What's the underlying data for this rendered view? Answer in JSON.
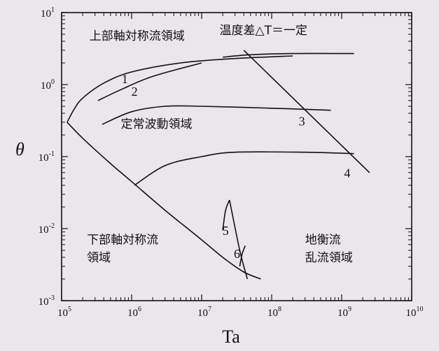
{
  "chart_data": {
    "type": "line",
    "title": "",
    "xlabel": "Ta",
    "ylabel": "θ",
    "x_scale": "log",
    "y_scale": "log",
    "xlim": [
      100000,
      10000000000
    ],
    "ylim": [
      0.001,
      10
    ],
    "x_ticks": [
      {
        "value": 100000,
        "base": "10",
        "exp": "5"
      },
      {
        "value": 1000000,
        "base": "10",
        "exp": "6"
      },
      {
        "value": 10000000,
        "base": "10",
        "exp": "7"
      },
      {
        "value": 100000000,
        "base": "10",
        "exp": "8"
      },
      {
        "value": 1000000000,
        "base": "10",
        "exp": "9"
      },
      {
        "value": 10000000000,
        "base": "10",
        "exp": "10"
      }
    ],
    "y_ticks": [
      {
        "value": 0.001,
        "base": "10",
        "exp": "-3"
      },
      {
        "value": 0.01,
        "base": "10",
        "exp": "-2"
      },
      {
        "value": 0.1,
        "base": "10",
        "exp": "-1"
      },
      {
        "value": 1,
        "base": "10",
        "exp": "0"
      },
      {
        "value": 10,
        "base": "10",
        "exp": "1"
      }
    ],
    "grid": false,
    "regions": [
      {
        "text": "上部軸対称流領域",
        "x": 250000,
        "y": 4.2
      },
      {
        "text": "温度差△T＝一定",
        "x": 18000000,
        "y": 5.0
      },
      {
        "text": "定常波動領域",
        "x": 700000,
        "y": 0.25
      },
      {
        "text": "下部軸対称流",
        "x": 230000,
        "y": 0.0062
      },
      {
        "text": "領域",
        "x": 230000,
        "y": 0.0035
      },
      {
        "text": "地衡流",
        "x": 300000000,
        "y": 0.0062
      },
      {
        "text": "乱流領域",
        "x": 300000000,
        "y": 0.0035
      }
    ],
    "series": [
      {
        "label": "1",
        "label_at": [
          800000,
          1.05
        ],
        "points": [
          [
            330000,
            0.6
          ],
          [
            700000,
            0.85
          ],
          [
            2000000,
            1.3
          ],
          [
            10000000,
            2.0
          ]
        ]
      },
      {
        "label": "2",
        "label_at": [
          1100000,
          0.7
        ],
        "points": [
          [
            380000,
            0.28
          ],
          [
            1000000,
            0.42
          ],
          [
            3000000,
            0.5
          ],
          [
            10000000,
            0.5
          ],
          [
            100000000,
            0.47
          ],
          [
            700000000,
            0.44
          ]
        ]
      },
      {
        "label": "3",
        "label_at": [
          270000000,
          0.27
        ],
        "points": [
          [
            20000000,
            2.4
          ],
          [
            50000000,
            2.6
          ],
          [
            200000000,
            2.7
          ],
          [
            1500000000,
            2.7
          ]
        ]
      },
      {
        "label": "4",
        "label_at": [
          1200000000,
          0.052
        ],
        "points": [
          [
            1100000,
            0.04
          ],
          [
            3000000,
            0.075
          ],
          [
            10000000,
            0.1
          ],
          [
            30000000,
            0.115
          ],
          [
            300000000,
            0.115
          ],
          [
            1500000000,
            0.11
          ]
        ]
      },
      {
        "label": "5",
        "label_at": [
          22000000,
          0.0082
        ],
        "points": [
          [
            20000000,
            0.0095
          ],
          [
            22000000,
            0.018
          ],
          [
            25000000,
            0.025
          ]
        ]
      },
      {
        "label": "6",
        "label_at": [
          32000000,
          0.0039
        ],
        "points": [
          [
            35000000,
            0.003
          ],
          [
            38000000,
            0.0045
          ],
          [
            42000000,
            0.0058
          ]
        ]
      }
    ],
    "boundaries": [
      {
        "name": "left-envelope",
        "points": [
          [
            120000,
            0.3
          ],
          [
            150000,
            0.45
          ],
          [
            200000,
            0.65
          ],
          [
            400000,
            1.05
          ],
          [
            1000000,
            1.5
          ],
          [
            5000000,
            2.0
          ],
          [
            30000000,
            2.3
          ],
          [
            200000000,
            2.5
          ]
        ]
      },
      {
        "name": "lower-envelope",
        "points": [
          [
            120000,
            0.3
          ],
          [
            200000,
            0.18
          ],
          [
            500000,
            0.08
          ],
          [
            1000000,
            0.045
          ],
          [
            3000000,
            0.018
          ],
          [
            10000000,
            0.007
          ],
          [
            20000000,
            0.004
          ],
          [
            40000000,
            0.0025
          ],
          [
            70000000,
            0.002
          ]
        ]
      },
      {
        "name": "constant-dT",
        "points": [
          [
            40000000,
            3.0
          ],
          [
            2500000000,
            0.06
          ]
        ]
      },
      {
        "name": "region-5-6-divider",
        "points": [
          [
            25000000,
            0.025
          ],
          [
            35000000,
            0.005
          ],
          [
            45000000,
            0.002
          ]
        ]
      }
    ]
  }
}
